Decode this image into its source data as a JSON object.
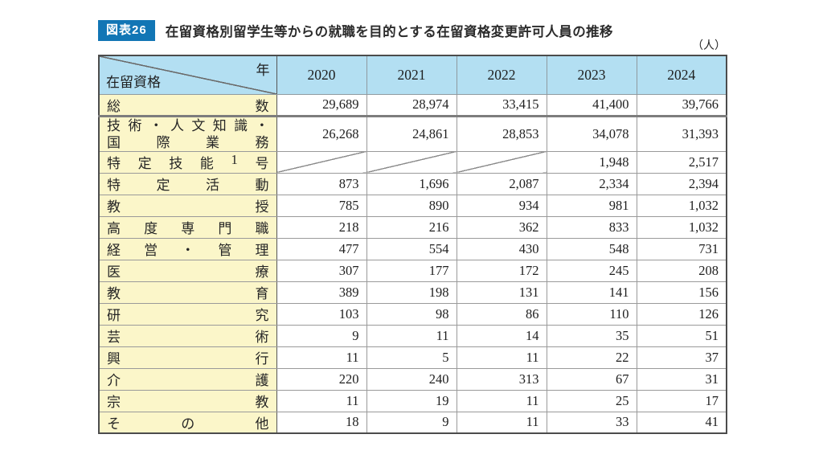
{
  "figure": {
    "badge": "図表26",
    "title": "在留資格別留学生等からの就職を目的とする在留資格変更許可人員の推移",
    "unit": "（人）"
  },
  "colors": {
    "badge_blue": "#1276b5",
    "header_blue": "#b3dff2",
    "label_yellow": "#fbf6c9",
    "border_dark": "#4c4c4c"
  },
  "table": {
    "corner": {
      "top_right": "年",
      "bottom_left": "在留資格"
    },
    "years": [
      "2020",
      "2021",
      "2022",
      "2023",
      "2024"
    ],
    "no_data_marker": "diagonal-slash",
    "rows": [
      {
        "label": "総数",
        "values": [
          "29,689",
          "28,974",
          "33,415",
          "41,400",
          "39,766"
        ]
      },
      {
        "label_lines": [
          "技術・人文知識・",
          "国際業務"
        ],
        "values": [
          "26,268",
          "24,861",
          "28,853",
          "34,078",
          "31,393"
        ]
      },
      {
        "label": "特定技能1号",
        "values": [
          "",
          "",
          "",
          "1,948",
          "2,517"
        ]
      },
      {
        "label": "特定活動",
        "values": [
          "873",
          "1,696",
          "2,087",
          "2,334",
          "2,394"
        ]
      },
      {
        "label": "教授",
        "values": [
          "785",
          "890",
          "934",
          "981",
          "1,032"
        ]
      },
      {
        "label": "高度専門職",
        "values": [
          "218",
          "216",
          "362",
          "833",
          "1,032"
        ]
      },
      {
        "label": "経営・管理",
        "values": [
          "477",
          "554",
          "430",
          "548",
          "731"
        ]
      },
      {
        "label": "医療",
        "values": [
          "307",
          "177",
          "172",
          "245",
          "208"
        ]
      },
      {
        "label": "教育",
        "values": [
          "389",
          "198",
          "131",
          "141",
          "156"
        ]
      },
      {
        "label": "研究",
        "values": [
          "103",
          "98",
          "86",
          "110",
          "126"
        ]
      },
      {
        "label": "芸術",
        "values": [
          "9",
          "11",
          "14",
          "35",
          "51"
        ]
      },
      {
        "label": "興行",
        "values": [
          "11",
          "5",
          "11",
          "22",
          "37"
        ]
      },
      {
        "label": "介護",
        "values": [
          "220",
          "240",
          "313",
          "67",
          "31"
        ]
      },
      {
        "label": "宗教",
        "values": [
          "11",
          "19",
          "11",
          "25",
          "17"
        ]
      },
      {
        "label": "その他",
        "values": [
          "18",
          "9",
          "11",
          "33",
          "41"
        ]
      }
    ]
  }
}
